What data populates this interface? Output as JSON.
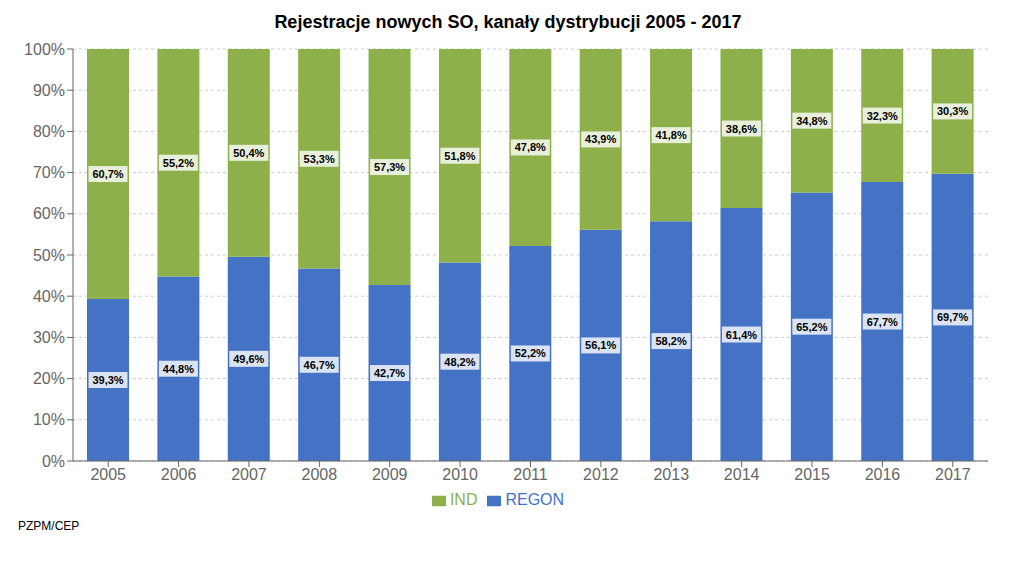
{
  "chart_data": {
    "type": "bar",
    "title": "Rejestracje nowych SO, kanały dystrybucji 2005 - 2017",
    "categories": [
      "2005",
      "2006",
      "2007",
      "2008",
      "2009",
      "2010",
      "2011",
      "2012",
      "2013",
      "2014",
      "2015",
      "2016",
      "2017"
    ],
    "series": [
      {
        "name": "REGON",
        "color": "#4472C4",
        "values": [
          39.3,
          44.8,
          49.6,
          46.7,
          42.7,
          48.2,
          52.2,
          56.1,
          58.2,
          61.4,
          65.2,
          67.7,
          69.7
        ],
        "value_labels": [
          "39,3%",
          "44,8%",
          "49,6%",
          "46,7%",
          "42,7%",
          "48,2%",
          "52,2%",
          "56,1%",
          "58,2%",
          "61,4%",
          "65,2%",
          "67,7%",
          "69,7%"
        ]
      },
      {
        "name": "IND",
        "color": "#8DB04A",
        "values": [
          60.7,
          55.2,
          50.4,
          53.3,
          57.3,
          51.8,
          47.8,
          43.9,
          41.8,
          38.6,
          34.8,
          32.3,
          30.3
        ],
        "value_labels": [
          "60,7%",
          "55,2%",
          "50,4%",
          "53,3%",
          "57,3%",
          "51,8%",
          "47,8%",
          "43,9%",
          "41,8%",
          "38,6%",
          "34,8%",
          "32,3%",
          "30,3%"
        ]
      }
    ],
    "ylim": [
      0,
      100
    ],
    "yticks": [
      {
        "value": 0,
        "label": "0%"
      },
      {
        "value": 10,
        "label": "10%"
      },
      {
        "value": 20,
        "label": "20%"
      },
      {
        "value": 30,
        "label": "30%"
      },
      {
        "value": 40,
        "label": "40%"
      },
      {
        "value": 50,
        "label": "50%"
      },
      {
        "value": 60,
        "label": "60%"
      },
      {
        "value": 70,
        "label": "70%"
      },
      {
        "value": 80,
        "label": "80%"
      },
      {
        "value": 90,
        "label": "90%"
      },
      {
        "value": 100,
        "label": "100%"
      }
    ],
    "grid": true,
    "stacked": true,
    "data_labels": true,
    "legend": "bottom",
    "annotations": [
      "PZPM/CEP"
    ]
  }
}
